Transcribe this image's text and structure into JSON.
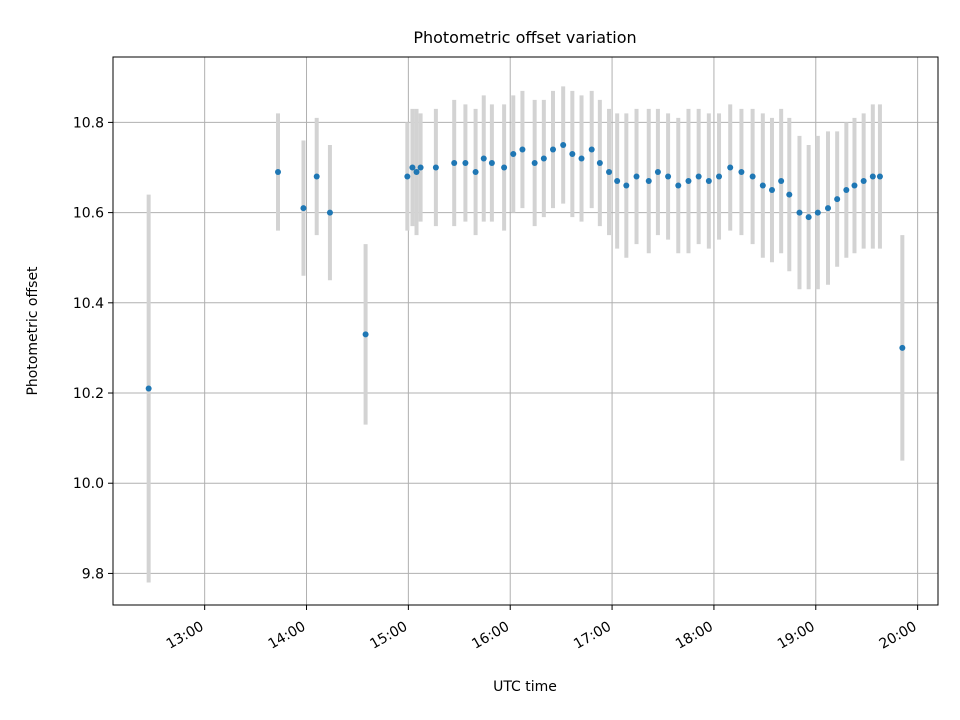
{
  "chart_data": {
    "type": "scatter",
    "title": "Photometric offset variation",
    "xlabel": "UTC time",
    "ylabel": "Photometric offset",
    "x_unit": "hours UTC",
    "xlim": [
      12.1,
      20.2
    ],
    "ylim": [
      9.73,
      10.945
    ],
    "xticks": [
      {
        "value": 13,
        "label": "13:00"
      },
      {
        "value": 14,
        "label": "14:00"
      },
      {
        "value": 15,
        "label": "15:00"
      },
      {
        "value": 16,
        "label": "16:00"
      },
      {
        "value": 17,
        "label": "17:00"
      },
      {
        "value": 18,
        "label": "18:00"
      },
      {
        "value": 19,
        "label": "19:00"
      },
      {
        "value": 20,
        "label": "20:00"
      }
    ],
    "yticks": [
      {
        "value": 9.8,
        "label": "9.8"
      },
      {
        "value": 10.0,
        "label": "10.0"
      },
      {
        "value": 10.2,
        "label": "10.2"
      },
      {
        "value": 10.4,
        "label": "10.4"
      },
      {
        "value": 10.6,
        "label": "10.6"
      },
      {
        "value": 10.8,
        "label": "10.8"
      }
    ],
    "grid": true,
    "point_color": "#1f77b4",
    "errorbar_color": "#d3d3d3",
    "series": [
      {
        "x": [
          12.45,
          13.72,
          13.97,
          14.1,
          14.23,
          14.58,
          14.99,
          15.04,
          15.08,
          15.12,
          15.27,
          15.45,
          15.56,
          15.66,
          15.74,
          15.82,
          15.94,
          16.03,
          16.12,
          16.24,
          16.33,
          16.42,
          16.52,
          16.61,
          16.7,
          16.8,
          16.88,
          16.97,
          17.05,
          17.14,
          17.24,
          17.36,
          17.45,
          17.55,
          17.65,
          17.75,
          17.85,
          17.95,
          18.05,
          18.16,
          18.27,
          18.38,
          18.48,
          18.57,
          18.66,
          18.74,
          18.84,
          18.93,
          19.02,
          19.12,
          19.21,
          19.3,
          19.38,
          19.47,
          19.56,
          19.63,
          19.85
        ],
        "y": [
          10.21,
          10.69,
          10.61,
          10.68,
          10.6,
          10.33,
          10.68,
          10.7,
          10.69,
          10.7,
          10.7,
          10.71,
          10.71,
          10.69,
          10.72,
          10.71,
          10.7,
          10.73,
          10.74,
          10.71,
          10.72,
          10.74,
          10.75,
          10.73,
          10.72,
          10.74,
          10.71,
          10.69,
          10.67,
          10.66,
          10.68,
          10.67,
          10.69,
          10.68,
          10.66,
          10.67,
          10.68,
          10.67,
          10.68,
          10.7,
          10.69,
          10.68,
          10.66,
          10.65,
          10.67,
          10.64,
          10.6,
          10.59,
          10.6,
          10.61,
          10.63,
          10.65,
          10.66,
          10.67,
          10.68,
          10.68,
          10.3
        ],
        "yerr": [
          0.43,
          0.13,
          0.15,
          0.13,
          0.15,
          0.2,
          0.12,
          0.13,
          0.14,
          0.12,
          0.13,
          0.14,
          0.13,
          0.14,
          0.14,
          0.13,
          0.14,
          0.13,
          0.13,
          0.14,
          0.13,
          0.13,
          0.13,
          0.14,
          0.14,
          0.13,
          0.14,
          0.14,
          0.15,
          0.16,
          0.15,
          0.16,
          0.14,
          0.14,
          0.15,
          0.16,
          0.15,
          0.15,
          0.14,
          0.14,
          0.14,
          0.15,
          0.16,
          0.16,
          0.16,
          0.17,
          0.17,
          0.16,
          0.17,
          0.17,
          0.15,
          0.15,
          0.15,
          0.15,
          0.16,
          0.16,
          0.25
        ]
      }
    ]
  }
}
